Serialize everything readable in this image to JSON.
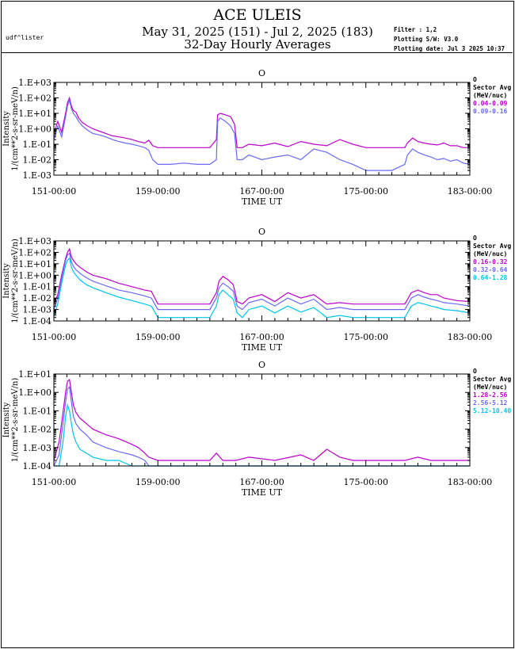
{
  "header": {
    "left_label": "udf^lister",
    "title": "ACE ULEIS",
    "subtitle": "May 31, 2025 (151) - Jul  2, 2025 (183)",
    "subtitle2": "32-Day Hourly Averages",
    "meta": [
      "Filter : 1,2",
      "Plotting S/W: V3.0",
      "Plotting date: Jul  3 2025 10:37"
    ]
  },
  "colors": {
    "purple": "#bb00cc",
    "blue": "#6a6af5",
    "cyan": "#00c4ee",
    "axis": "#000000"
  },
  "chart_data": [
    {
      "type": "line",
      "title": "O",
      "xlabel": "TIME UT",
      "ylabel": [
        "Intensity",
        "1/(cm**2-s-sr-meV/n)"
      ],
      "y_scale": "log",
      "ylim": [
        0.001,
        1000
      ],
      "xlim": [
        151,
        183
      ],
      "x_ticks": [
        "151-00:00",
        "159-00:00",
        "167-00:00",
        "175-00:00",
        "183-00:00"
      ],
      "y_ticks": [
        "1.E+03",
        "1.E+02",
        "1.E+01",
        "1.E+00",
        "1.E-01",
        "1.E-02",
        "1.E-03"
      ],
      "legend": {
        "header": [
          "O",
          "Sector Avg",
          "(MeV/nuc)"
        ],
        "position": "right"
      },
      "series": [
        {
          "name": "0.04-0.09",
          "color": "purple",
          "x": [
            151.0,
            151.3,
            151.6,
            151.9,
            152.05,
            152.2,
            152.35,
            152.5,
            152.7,
            152.9,
            153.2,
            153.6,
            154.0,
            154.5,
            155.0,
            155.5,
            156.0,
            156.5,
            157.0,
            157.5,
            158.0,
            158.3,
            158.6,
            159.0,
            160.0,
            161.0,
            162.0,
            163.0,
            163.5,
            163.6,
            163.8,
            164.2,
            164.6,
            164.9,
            165.1,
            165.5,
            166.0,
            167.0,
            168.0,
            169.0,
            170.0,
            171.0,
            172.0,
            173.0,
            174.0,
            175.0,
            176.0,
            177.0,
            178.0,
            178.2,
            178.6,
            179.0,
            179.5,
            180.0,
            180.5,
            181.0,
            181.5,
            182.0,
            182.5,
            183.0
          ],
          "y": [
            0.5,
            3,
            0.6,
            10,
            50,
            100,
            30,
            15,
            12,
            5,
            2.5,
            1.5,
            1,
            0.7,
            0.5,
            0.35,
            0.3,
            0.25,
            0.2,
            0.15,
            0.12,
            0.18,
            0.08,
            0.06,
            0.06,
            0.06,
            0.06,
            0.06,
            0.2,
            8,
            10,
            8,
            6,
            2,
            0.06,
            0.06,
            0.1,
            0.08,
            0.12,
            0.07,
            0.15,
            0.1,
            0.08,
            0.2,
            0.1,
            0.06,
            0.06,
            0.06,
            0.06,
            0.12,
            0.25,
            0.15,
            0.12,
            0.1,
            0.09,
            0.12,
            0.08,
            0.08,
            0.06,
            0.06
          ]
        },
        {
          "name": "0.09-0.16",
          "color": "blue",
          "x": [
            151.0,
            151.3,
            151.6,
            151.9,
            152.05,
            152.2,
            152.35,
            152.5,
            152.7,
            152.9,
            153.2,
            153.6,
            154.0,
            154.5,
            155.0,
            155.5,
            156.0,
            156.5,
            157.0,
            157.5,
            158.0,
            158.3,
            158.6,
            159.0,
            160.0,
            161.0,
            162.0,
            163.0,
            163.5,
            163.6,
            163.8,
            164.2,
            164.6,
            164.9,
            165.1,
            165.5,
            166.0,
            167.0,
            168.0,
            169.0,
            170.0,
            171.0,
            172.0,
            173.0,
            174.0,
            175.0,
            176.0,
            177.0,
            178.0,
            178.2,
            178.6,
            179.0,
            179.5,
            180.0,
            180.5,
            181.0,
            181.5,
            182.0,
            182.5,
            183.0
          ],
          "y": [
            0.2,
            1.5,
            0.3,
            6,
            30,
            70,
            20,
            10,
            6,
            3,
            1.5,
            0.8,
            0.5,
            0.4,
            0.3,
            0.2,
            0.15,
            0.12,
            0.1,
            0.08,
            0.06,
            0.04,
            0.01,
            0.005,
            0.005,
            0.006,
            0.005,
            0.005,
            0.01,
            3,
            5,
            3,
            1.5,
            0.5,
            0.01,
            0.01,
            0.02,
            0.01,
            0.015,
            0.02,
            0.01,
            0.05,
            0.03,
            0.01,
            0.005,
            0.002,
            0.002,
            0.002,
            0.005,
            0.02,
            0.05,
            0.03,
            0.02,
            0.015,
            0.01,
            0.012,
            0.008,
            0.01,
            0.006,
            0.005
          ]
        }
      ]
    },
    {
      "type": "line",
      "title": "O",
      "xlabel": "TIME UT",
      "ylabel": [
        "Intensity",
        "1/(cm**2-s-sr-meV/n)"
      ],
      "y_scale": "log",
      "ylim": [
        0.0001,
        1000
      ],
      "xlim": [
        151,
        183
      ],
      "x_ticks": [
        "151-00:00",
        "159-00:00",
        "167-00:00",
        "175-00:00",
        "183-00:00"
      ],
      "y_ticks": [
        "1.E+03",
        "1.E+02",
        "1.E+01",
        "1.E+00",
        "1.E-01",
        "1.E-02",
        "1.E-03",
        "1.E-04"
      ],
      "legend": {
        "header": [
          "O",
          "Sector Avg",
          "(MeV/nuc)"
        ],
        "position": "right"
      },
      "series": [
        {
          "name": "0.16-0.32",
          "color": "purple",
          "x": [
            151.0,
            151.3,
            151.6,
            151.9,
            152.05,
            152.2,
            152.35,
            152.5,
            152.7,
            153.0,
            153.5,
            154.0,
            155.0,
            156.0,
            157.0,
            158.0,
            158.5,
            159.0,
            160.0,
            161.0,
            162.0,
            163.0,
            163.5,
            163.7,
            164.0,
            164.4,
            164.8,
            165.1,
            165.5,
            166.0,
            167.0,
            168.0,
            169.0,
            170.0,
            171.0,
            172.0,
            173.0,
            174.0,
            175.0,
            176.0,
            177.0,
            178.0,
            178.5,
            179.0,
            179.5,
            180.0,
            180.5,
            181.0,
            182.0,
            183.0
          ],
          "y": [
            0.003,
            0.02,
            1,
            30,
            100,
            200,
            40,
            20,
            10,
            5,
            2,
            1,
            0.5,
            0.2,
            0.1,
            0.05,
            0.04,
            0.003,
            0.003,
            0.003,
            0.003,
            0.003,
            0.03,
            0.3,
            0.8,
            0.4,
            0.15,
            0.005,
            0.003,
            0.01,
            0.02,
            0.005,
            0.03,
            0.01,
            0.02,
            0.003,
            0.004,
            0.003,
            0.003,
            0.003,
            0.003,
            0.003,
            0.03,
            0.05,
            0.03,
            0.02,
            0.02,
            0.01,
            0.006,
            0.005
          ]
        },
        {
          "name": "0.32-0.64",
          "color": "blue",
          "x": [
            151.0,
            151.3,
            151.6,
            151.9,
            152.05,
            152.2,
            152.35,
            152.5,
            152.7,
            153.0,
            153.5,
            154.0,
            155.0,
            156.0,
            157.0,
            158.0,
            158.5,
            159.0,
            160.0,
            161.0,
            162.0,
            163.0,
            163.5,
            163.7,
            164.0,
            164.4,
            164.8,
            165.1,
            165.5,
            166.0,
            167.0,
            168.0,
            169.0,
            170.0,
            171.0,
            172.0,
            173.0,
            174.0,
            175.0,
            176.0,
            177.0,
            178.0,
            178.5,
            179.0,
            179.5,
            180.0,
            180.5,
            181.0,
            182.0,
            183.0
          ],
          "y": [
            0.001,
            0.01,
            0.5,
            20,
            60,
            80,
            15,
            6,
            3,
            1.5,
            0.6,
            0.3,
            0.12,
            0.05,
            0.03,
            0.015,
            0.01,
            0.001,
            0.001,
            0.001,
            0.001,
            0.001,
            0.01,
            0.08,
            0.2,
            0.1,
            0.04,
            0.002,
            0.001,
            0.004,
            0.008,
            0.002,
            0.01,
            0.003,
            0.008,
            0.001,
            0.0015,
            0.001,
            0.001,
            0.001,
            0.001,
            0.001,
            0.01,
            0.02,
            0.012,
            0.008,
            0.006,
            0.004,
            0.003,
            0.002
          ]
        },
        {
          "name": "0.64-1.28",
          "color": "cyan",
          "x": [
            151.0,
            151.3,
            151.6,
            151.9,
            152.05,
            152.2,
            152.35,
            152.5,
            152.7,
            153.0,
            153.5,
            154.0,
            155.0,
            156.0,
            157.0,
            158.0,
            158.5,
            159.0,
            160.0,
            161.0,
            162.0,
            163.0,
            163.5,
            163.7,
            164.0,
            164.4,
            164.8,
            165.1,
            165.5,
            166.0,
            167.0,
            168.0,
            169.0,
            170.0,
            171.0,
            172.0,
            173.0,
            174.0,
            175.0,
            176.0,
            177.0,
            178.0,
            178.5,
            179.0,
            179.5,
            180.0,
            180.5,
            181.0,
            182.0,
            183.0
          ],
          "y": [
            0.0003,
            0.003,
            0.2,
            8,
            20,
            30,
            5,
            2,
            1,
            0.4,
            0.15,
            0.08,
            0.03,
            0.012,
            0.006,
            0.003,
            0.002,
            0.0002,
            0.0002,
            0.0002,
            0.0002,
            0.0002,
            0.002,
            0.02,
            0.05,
            0.02,
            0.008,
            0.0005,
            0.0002,
            0.001,
            0.002,
            0.0005,
            0.002,
            0.0006,
            0.0015,
            0.0002,
            0.0003,
            0.0002,
            0.0002,
            0.0002,
            0.0002,
            0.0002,
            0.002,
            0.004,
            0.003,
            0.002,
            0.0015,
            0.001,
            0.0008,
            0.0005
          ]
        }
      ]
    },
    {
      "type": "line",
      "title": "O",
      "xlabel": "TIME UT",
      "ylabel": [
        "Intensity",
        "1/(cm**2-s-sr-meV/n)"
      ],
      "y_scale": "log",
      "ylim": [
        0.0001,
        10
      ],
      "xlim": [
        151,
        183
      ],
      "x_ticks": [
        "151-00:00",
        "159-00:00",
        "167-00:00",
        "175-00:00",
        "183-00:00"
      ],
      "y_ticks": [
        "1.E+01",
        "1.E+00",
        "1.E-01",
        "1.E-02",
        "1.E-03",
        "1.E-04"
      ],
      "legend": {
        "header": [
          "O",
          "Sector Avg",
          "(MeV/nuc)"
        ],
        "position": "right"
      },
      "series": [
        {
          "name": "1.28-2.56",
          "color": "purple",
          "x": [
            151.0,
            151.4,
            151.7,
            151.9,
            152.05,
            152.2,
            152.35,
            152.5,
            152.7,
            153.0,
            153.5,
            154.0,
            155.0,
            156.0,
            157.0,
            157.5,
            158.0,
            158.3,
            159.0,
            163.0,
            163.5,
            164.0,
            165.0,
            166.0,
            168.0,
            170.0,
            171.0,
            172.0,
            173.0,
            174.0,
            176.0,
            178.0,
            179.0,
            180.0,
            181.0,
            183.0
          ],
          "y": [
            0.0002,
            0.002,
            0.08,
            1,
            4,
            5,
            1,
            0.2,
            0.08,
            0.04,
            0.02,
            0.01,
            0.005,
            0.003,
            0.0015,
            0.001,
            0.0005,
            0.0003,
            0.0002,
            0.0002,
            0.0005,
            0.0002,
            0.0002,
            0.0003,
            0.0002,
            0.0004,
            0.0002,
            0.0008,
            0.0003,
            0.0002,
            0.0002,
            0.0002,
            0.0003,
            0.0002,
            0.0002,
            0.0002
          ]
        },
        {
          "name": "2.56-5.12",
          "color": "blue",
          "x": [
            151.0,
            151.4,
            151.7,
            151.9,
            152.05,
            152.2,
            152.35,
            152.5,
            152.7,
            153.0,
            153.5,
            154.0,
            155.0,
            156.0,
            157.0,
            157.5,
            158.0,
            158.3,
            159.0,
            163.0,
            163.5,
            164.0,
            165.0,
            166.0,
            168.0,
            170.0,
            171.0,
            172.0,
            173.0,
            174.0,
            176.0,
            178.0,
            179.0,
            180.0,
            181.0,
            183.0
          ],
          "y": [
            0.0001,
            0.0004,
            0.02,
            0.3,
            1.5,
            2,
            0.3,
            0.05,
            0.02,
            0.01,
            0.005,
            0.002,
            0.001,
            0.0006,
            0.0004,
            0.0003,
            0.0002,
            0.0001,
            0.0001,
            0.0001,
            0.0001,
            0.0001,
            0.0001,
            0.0001,
            0.0001,
            0.0001,
            0.0001,
            0.0001,
            0.0001,
            0.0001,
            0.0001,
            0.0001,
            0.0001,
            0.0001,
            0.0001,
            0.0001
          ]
        },
        {
          "name": "5.12-10.40",
          "color": "cyan",
          "x": [
            151.0,
            151.4,
            151.7,
            151.9,
            152.05,
            152.2,
            152.35,
            152.5,
            152.7,
            153.0,
            153.5,
            154.0,
            155.0,
            156.0,
            157.0,
            157.5,
            158.0,
            158.3,
            159.0,
            163.0,
            163.5,
            164.0,
            165.0,
            166.0,
            168.0,
            170.0,
            171.0,
            172.0,
            173.0,
            174.0,
            176.0,
            178.0,
            179.0,
            180.0,
            181.0,
            183.0
          ],
          "y": [
            0.0001,
            0.0001,
            0.002,
            0.05,
            0.2,
            0.1,
            0.02,
            0.005,
            0.002,
            0.0008,
            0.0005,
            0.0003,
            0.0002,
            0.0002,
            0.0001,
            0.0001,
            0.0001,
            0.0001,
            0.0001,
            0.0001,
            0.0001,
            0.0001,
            0.0001,
            0.0001,
            0.0001,
            0.0001,
            0.0001,
            0.0001,
            0.0001,
            0.0001,
            0.0001,
            0.0001,
            0.0001,
            0.0001,
            0.0001,
            0.0001
          ]
        }
      ]
    }
  ]
}
